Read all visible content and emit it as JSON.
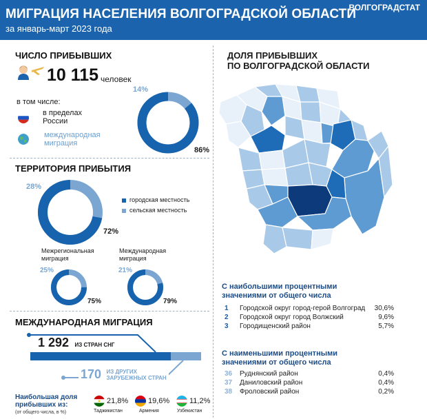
{
  "header": {
    "title": "МИГРАЦИЯ НАСЕЛЕНИЯ ВОЛГОГРАДСКОЙ ОБЛАСТИ",
    "subtitle": "за январь-март 2023 года",
    "brand": "ВОЛГОГРАДСТАТ"
  },
  "arrivals": {
    "title": "ЧИСЛО ПРИБЫВШИХ",
    "value": "10 115",
    "unit": "человек",
    "including": "в том числе:",
    "domestic_label_1": "в пределах",
    "domestic_label_2": "России",
    "intl_label_1": "международная",
    "intl_label_2": "миграция",
    "pct_domestic": "86%",
    "pct_intl": "14%",
    "share_domestic": 0.86
  },
  "territory": {
    "title": "ТЕРРИТОРИЯ ПРИБЫТИЯ",
    "pct_urban": "72%",
    "pct_rural": "28%",
    "share_urban": 0.72,
    "legend_urban": "городская местность",
    "legend_rural": "сельская местность",
    "interregional_1": "Межрегиональная",
    "interregional_2": "миграция",
    "inter_urban": "75%",
    "inter_rural": "25%",
    "inter_share": 0.75,
    "international_1": "Международная",
    "international_2": "миграция",
    "intl_urban": "79%",
    "intl_rural": "21%",
    "intl_share": 0.79
  },
  "international": {
    "title": "МЕЖДУНАРОДНАЯ МИГРАЦИЯ",
    "cis_value": "1 292",
    "cis_label": "ИЗ СТРАН СНГ",
    "other_value": "170",
    "other_label_1": "ИЗ ДРУГИХ",
    "other_label_2": "ЗАРУБЕЖНЫХ СТРАН",
    "largest_1": "Наибольшая доля",
    "largest_2": "прибывших из:",
    "largest_note": "(от общего числа, в %)",
    "countries": [
      {
        "name": "Таджикистан",
        "value": "21,8%"
      },
      {
        "name": "Армения",
        "value": "19,6%"
      },
      {
        "name": "Узбекистан",
        "value": "11,2%"
      }
    ]
  },
  "map": {
    "title_1": "ДОЛЯ ПРИБЫВШИХ",
    "title_2": "ПО ВОЛГОГРАДСКОЙ ОБЛАСТИ",
    "colors": {
      "darkest": "#0d3a7a",
      "dark": "#1e6cb8",
      "mid": "#5e9bd3",
      "light": "#a9c9e9",
      "lightest": "#e8f1fa"
    }
  },
  "ranking": {
    "top_title_1": "С наибольшими процентными",
    "top_title_2": "значениями от общего числа",
    "top": [
      {
        "num": "1",
        "name": "Городской округ город-герой Волгоград",
        "value": "30,6%"
      },
      {
        "num": "2",
        "name": "Городской округ город Волжский",
        "value": "9,6%"
      },
      {
        "num": "3",
        "name": "Городищенский район",
        "value": "5,7%"
      }
    ],
    "bottom_title_1": "С наименьшими процентными",
    "bottom_title_2": "значениями от общего числа",
    "bottom": [
      {
        "num": "36",
        "name": "Руднянский район",
        "value": "0,4%"
      },
      {
        "num": "37",
        "name": "Даниловский район",
        "value": "0,4%"
      },
      {
        "num": "38",
        "name": "Фроловский район",
        "value": "0,2%"
      }
    ]
  }
}
